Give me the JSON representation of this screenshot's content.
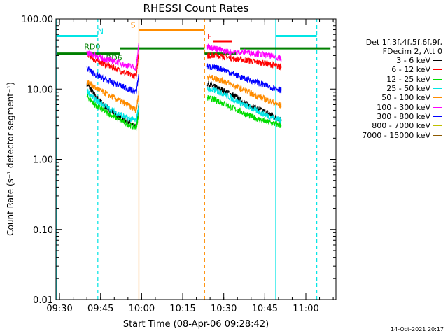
{
  "chart_data": {
    "type": "line",
    "title": "RHESSI Count Rates",
    "xlabel": "Start Time (08-Apr-06 09:28:42)",
    "ylabel": "Count Rate (s⁻¹ detector segment⁻¹)",
    "yscale": "log",
    "ylim": [
      0.01,
      100
    ],
    "xlim": [
      "09:28:42",
      "11:11:00"
    ],
    "x_ticks": [
      "09:30",
      "09:45",
      "10:00",
      "10:15",
      "10:30",
      "10:45",
      "11:00"
    ],
    "y_ticks": [
      "0.01",
      "0.10",
      "1.00",
      "10.00",
      "100.00"
    ],
    "series": [
      {
        "name": "3 - 6 keV",
        "color": "#000000",
        "segments": [
          {
            "x": [
              "09:40",
              "09:43",
              "09:46",
              "09:50",
              "09:54",
              "09:58",
              "09:59"
            ],
            "y": [
              12,
              8.0,
              6.0,
              4.5,
              3.5,
              3.0,
              6.0
            ]
          },
          {
            "x": [
              "10:24",
              "10:27",
              "10:30",
              "10:34",
              "10:38",
              "10:42",
              "10:46",
              "10:50",
              "10:51"
            ],
            "y": [
              12,
              10.5,
              9.5,
              8.0,
              6.2,
              5.3,
              4.6,
              3.8,
              3.5
            ]
          }
        ]
      },
      {
        "name": "6 - 12 keV",
        "color": "#ff0000",
        "segments": [
          {
            "x": [
              "09:40",
              "09:43",
              "09:46",
              "09:50",
              "09:54",
              "09:58",
              "09:59"
            ],
            "y": [
              32,
              26,
              23,
              20,
              17,
              15,
              35
            ]
          },
          {
            "x": [
              "10:24",
              "10:27",
              "10:30",
              "10:34",
              "10:38",
              "10:42",
              "10:46",
              "10:50",
              "10:51"
            ],
            "y": [
              30,
              30,
              29,
              27,
              26,
              24,
              23,
              21,
              20
            ]
          }
        ]
      },
      {
        "name": "12 - 25 keV",
        "color": "#00dd00",
        "segments": [
          {
            "x": [
              "09:40",
              "09:43",
              "09:46",
              "09:50",
              "09:54",
              "09:58",
              "09:59"
            ],
            "y": [
              8.0,
              6.0,
              5.0,
              4.0,
              3.3,
              2.8,
              4.5
            ]
          },
          {
            "x": [
              "10:24",
              "10:27",
              "10:30",
              "10:34",
              "10:38",
              "10:42",
              "10:46",
              "10:50",
              "10:51"
            ],
            "y": [
              7.5,
              7.0,
              6.3,
              5.2,
              4.4,
              3.8,
              3.4,
              3.1,
              3.0
            ]
          }
        ]
      },
      {
        "name": "25 - 50 keV",
        "color": "#00e5e5",
        "segments": [
          {
            "x": [
              "09:40",
              "09:43",
              "09:46",
              "09:50",
              "09:54",
              "09:58",
              "09:59"
            ],
            "y": [
              9.5,
              7.0,
              6.0,
              4.8,
              4.0,
              3.5,
              6.0
            ]
          },
          {
            "x": [
              "10:24",
              "10:27",
              "10:30",
              "10:34",
              "10:38",
              "10:42",
              "10:46",
              "10:50",
              "10:51"
            ],
            "y": [
              10,
              9.5,
              8.5,
              7.0,
              5.8,
              4.9,
              4.2,
              3.7,
              3.5
            ]
          }
        ]
      },
      {
        "name": "50 - 100 keV",
        "color": "#ff8c00",
        "segments": [
          {
            "x": [
              "09:40",
              "09:43",
              "09:46",
              "09:50",
              "09:54",
              "09:58",
              "09:59"
            ],
            "y": [
              13,
              10.5,
              9.0,
              7.5,
              6.2,
              5.0,
              9.0
            ]
          },
          {
            "x": [
              "10:24",
              "10:27",
              "10:30",
              "10:34",
              "10:38",
              "10:42",
              "10:46",
              "10:50",
              "10:51"
            ],
            "y": [
              15,
              14,
              13,
              11,
              9.5,
              8.0,
              7.0,
              6.0,
              5.8
            ]
          }
        ]
      },
      {
        "name": "100 - 300 keV",
        "color": "#ff00ff",
        "segments": [
          {
            "x": [
              "09:40",
              "09:43",
              "09:46",
              "09:50",
              "09:54",
              "09:58",
              "09:59"
            ],
            "y": [
              33,
              30,
              27,
              25,
              22,
              20,
              45
            ]
          },
          {
            "x": [
              "10:24",
              "10:27",
              "10:30",
              "10:34",
              "10:38",
              "10:42",
              "10:46",
              "10:50",
              "10:51"
            ],
            "y": [
              40,
              38,
              35,
              33,
              34,
              32,
              30,
              28,
              27
            ]
          }
        ]
      },
      {
        "name": "300 - 800 keV",
        "color": "#0000ff",
        "segments": [
          {
            "x": [
              "09:40",
              "09:43",
              "09:46",
              "09:50",
              "09:54",
              "09:58",
              "09:59"
            ],
            "y": [
              20,
              16,
              14,
              12,
              10.5,
              9.0,
              16
            ]
          },
          {
            "x": [
              "10:24",
              "10:27",
              "10:30",
              "10:34",
              "10:38",
              "10:42",
              "10:46",
              "10:50",
              "10:51"
            ],
            "y": [
              21,
              20,
              19,
              16,
              14,
              12.5,
              11,
              10,
              9.5
            ]
          }
        ]
      },
      {
        "name": "800 - 7000 keV",
        "color": "#bfbf00",
        "segments": []
      },
      {
        "name": "7000 - 15000 keV",
        "color": "#8b5a00",
        "segments": []
      }
    ],
    "annotations": [
      {
        "text": "N",
        "color": "#00e5e5"
      },
      {
        "text": "S",
        "color": "#ff8c00"
      },
      {
        "text": "F",
        "color": "#ff0000"
      },
      {
        "text": "RD0",
        "color": "#008000"
      },
      {
        "text": "RD6",
        "color": "#008000"
      }
    ],
    "legend_header": [
      "Det 1f,3f,4f,5f,6f,9f,",
      "FDecim 2, Att 0"
    ],
    "legend_placement": "right"
  },
  "footer": {
    "timestamp": "14-Oct-2021 20:17"
  }
}
